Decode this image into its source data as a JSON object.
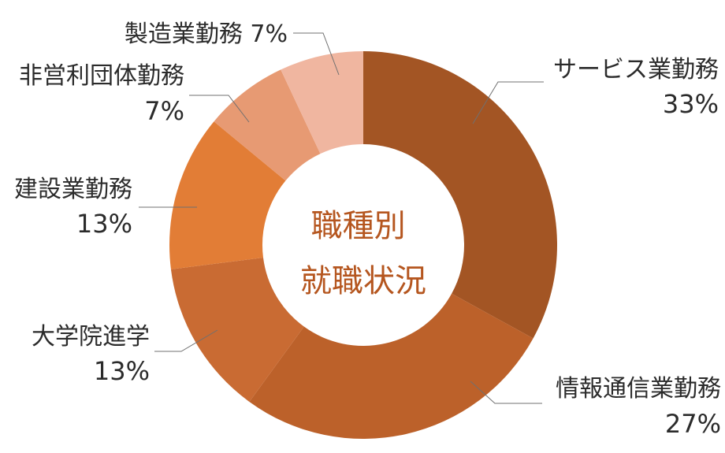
{
  "chart_data": {
    "type": "pie",
    "title": "職種別\n就職状況",
    "categories": [
      "サービス業勤務",
      "情報通信業勤務",
      "大学院進学",
      "建設業勤務",
      "非営利団体勤務",
      "製造業勤務"
    ],
    "values": [
      33,
      27,
      13,
      13,
      7,
      7
    ],
    "value_labels": [
      "33%",
      "27%",
      "13%",
      "13%",
      "7%",
      "7%"
    ],
    "colors": [
      "#a35524",
      "#bc612a",
      "#c96b33",
      "#e27d36",
      "#e79a73",
      "#f0b6a0"
    ],
    "legend": "none"
  }
}
